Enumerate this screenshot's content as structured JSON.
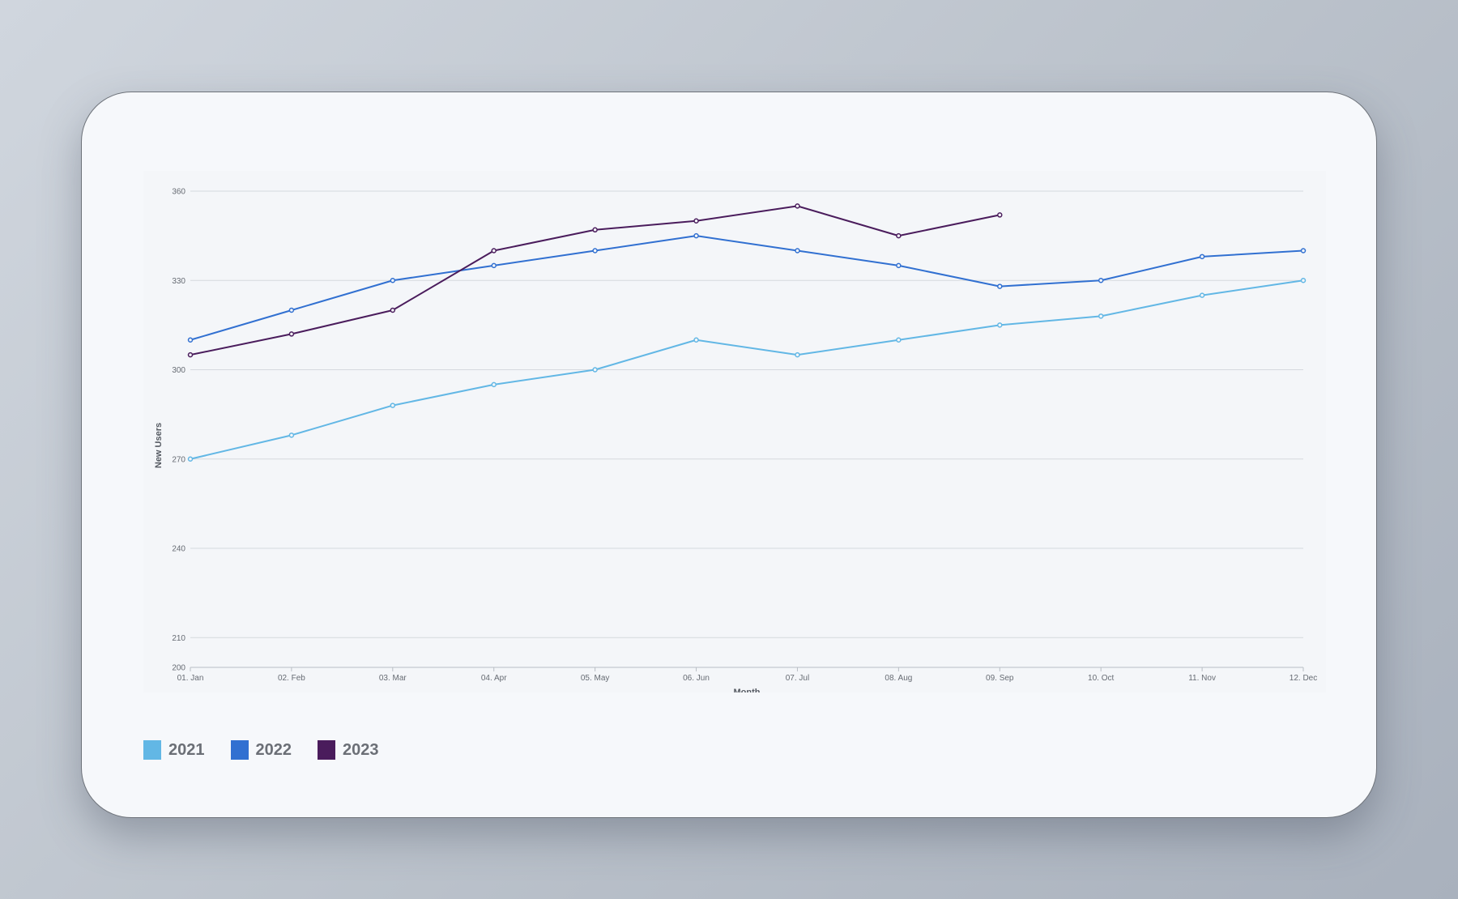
{
  "chart_data": {
    "type": "line",
    "title": "",
    "xlabel": "Month",
    "ylabel": "New Users",
    "categories": [
      "01. Jan",
      "02. Feb",
      "03. Mar",
      "04. Apr",
      "05. May",
      "06. Jun",
      "07. Jul",
      "08. Aug",
      "09. Sep",
      "10. Oct",
      "11. Nov",
      "12. Dec"
    ],
    "ylim": [
      200,
      360
    ],
    "yticks": [
      200,
      210,
      240,
      270,
      300,
      330,
      360
    ],
    "grid": true,
    "legend": "bottom-left",
    "series": [
      {
        "name": "2021",
        "color": "#62b7e5",
        "values": [
          270,
          278,
          288,
          295,
          300,
          310,
          305,
          310,
          315,
          318,
          325,
          330
        ]
      },
      {
        "name": "2022",
        "color": "#3170d1",
        "values": [
          310,
          320,
          330,
          335,
          340,
          345,
          340,
          335,
          328,
          330,
          338,
          340
        ]
      },
      {
        "name": "2023",
        "color": "#4a1c5c",
        "values": [
          305,
          312,
          320,
          340,
          347,
          350,
          355,
          345,
          352,
          null,
          null,
          null
        ]
      }
    ]
  }
}
